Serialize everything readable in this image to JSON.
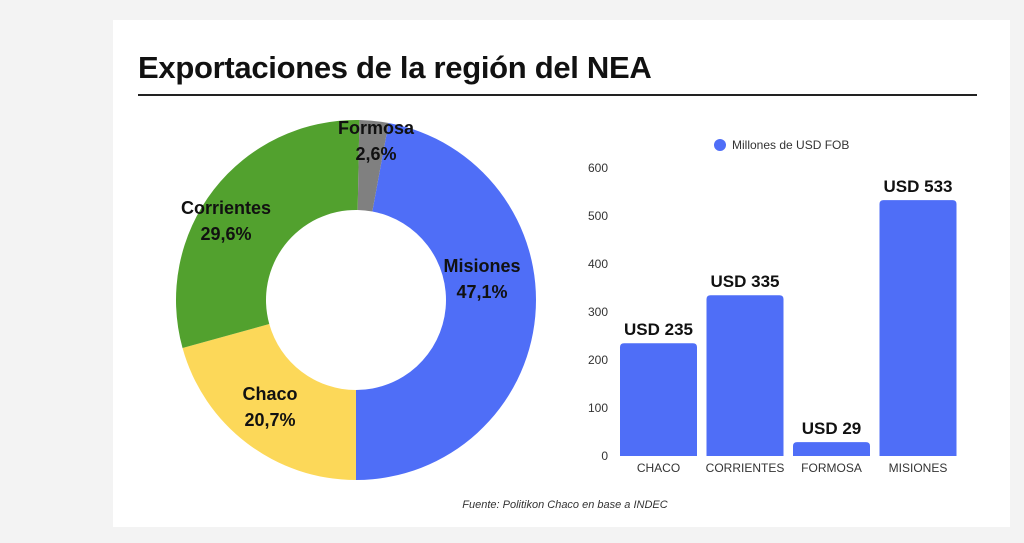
{
  "title": "Exportaciones de la región del NEA",
  "source": "Fuente: Politikon Chaco en base a INDEC",
  "chart_data": [
    {
      "type": "pie",
      "donut": true,
      "slices": [
        {
          "label": "Misiones",
          "value": 47.1,
          "text": "47,1%",
          "color": "#4f6ef7"
        },
        {
          "label": "Chaco",
          "value": 20.7,
          "text": "20,7%",
          "color": "#fcd859"
        },
        {
          "label": "Corrientes",
          "value": 29.6,
          "text": "29,6%",
          "color": "#52a12e"
        },
        {
          "label": "Formosa",
          "value": 2.6,
          "text": "2,6%",
          "color": "#808080"
        }
      ]
    },
    {
      "type": "bar",
      "categories": [
        "CHACO",
        "CORRIENTES",
        "FORMOSA",
        "MISIONES"
      ],
      "series": [
        {
          "name": "Millones de USD FOB",
          "values": [
            235,
            335,
            29,
            533
          ],
          "color": "#4f6ef7"
        }
      ],
      "data_labels": [
        "USD 235",
        "USD 335",
        "USD 29",
        "USD 533"
      ],
      "ylim": [
        0,
        600
      ],
      "yticks": [
        0,
        100,
        200,
        300,
        400,
        500,
        600
      ],
      "grid": false,
      "legend": "top"
    }
  ]
}
